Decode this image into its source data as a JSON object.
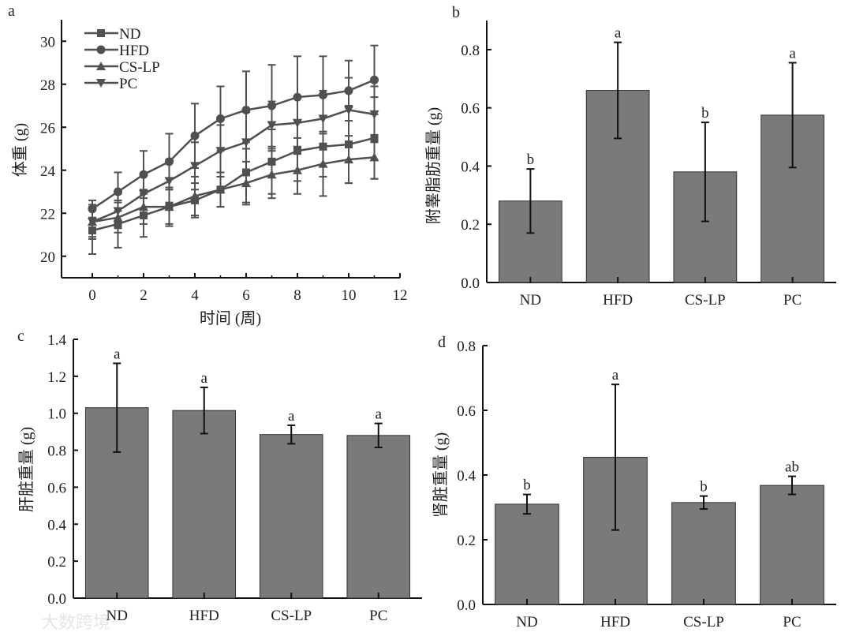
{
  "colors": {
    "line": "#505050",
    "bar": "#7a7a7a",
    "axis": "#111111"
  },
  "watermark": "大数跨境",
  "chart_data": [
    {
      "panel": "a",
      "type": "line",
      "xlabel": "时间 (周)",
      "ylabel": "体重 (g)",
      "xlim": [
        -1.2,
        12
      ],
      "ylim": [
        19,
        31
      ],
      "xticks": [
        0,
        2,
        4,
        6,
        8,
        10,
        12
      ],
      "yticks": [
        20,
        22,
        24,
        26,
        28,
        30
      ],
      "legend": "top-left",
      "x": [
        0,
        1,
        2,
        3,
        4,
        5,
        6,
        7,
        8,
        9,
        10,
        11
      ],
      "series": [
        {
          "name": "ND",
          "marker": "square",
          "values": [
            21.2,
            21.5,
            21.9,
            22.3,
            22.6,
            23.1,
            23.9,
            24.4,
            24.9,
            25.1,
            25.2,
            25.5
          ],
          "errors": [
            1.1,
            1.1,
            1.0,
            0.9,
            0.8,
            0.8,
            1.4,
            1.5,
            1.4,
            1.4,
            1.8,
            1.9
          ]
        },
        {
          "name": "HFD",
          "marker": "circle",
          "values": [
            22.2,
            23.0,
            23.8,
            24.4,
            25.6,
            26.4,
            26.8,
            27.0,
            27.4,
            27.5,
            27.7,
            28.2
          ],
          "errors": [
            0.4,
            0.9,
            1.1,
            1.3,
            1.5,
            1.5,
            1.8,
            1.9,
            1.9,
            1.8,
            1.4,
            1.6
          ]
        },
        {
          "name": "CS-LP",
          "marker": "triangle-up",
          "values": [
            21.6,
            21.8,
            22.3,
            22.3,
            22.8,
            23.1,
            23.4,
            23.8,
            24.0,
            24.3,
            24.5,
            24.6
          ],
          "errors": [
            0.7,
            0.7,
            0.8,
            0.8,
            0.9,
            0.8,
            1.0,
            1.1,
            1.1,
            1.5,
            1.1,
            1.0
          ]
        },
        {
          "name": "PC",
          "marker": "triangle-down",
          "values": [
            21.6,
            22.1,
            22.9,
            23.5,
            24.2,
            24.9,
            25.3,
            26.1,
            26.2,
            26.4,
            26.8,
            26.6
          ],
          "errors": [
            0.8,
            0.8,
            0.9,
            1.0,
            1.1,
            1.2,
            1.4,
            1.1,
            1.2,
            1.3,
            1.5,
            1.3
          ]
        }
      ]
    },
    {
      "panel": "b",
      "type": "bar",
      "ylabel": "附睾脂肪重量 (g)",
      "categories": [
        "ND",
        "HFD",
        "CS-LP",
        "PC"
      ],
      "values": [
        0.28,
        0.66,
        0.38,
        0.575
      ],
      "errors": [
        0.11,
        0.165,
        0.17,
        0.18
      ],
      "letters": [
        "b",
        "a",
        "b",
        "a"
      ],
      "ylim": [
        0,
        0.9
      ],
      "yticks": [
        "0.0",
        "0.2",
        "0.4",
        "0.6",
        "0.8"
      ]
    },
    {
      "panel": "c",
      "type": "bar",
      "ylabel": "肝脏重量 (g)",
      "categories": [
        "ND",
        "HFD",
        "CS-LP",
        "PC"
      ],
      "values": [
        1.03,
        1.015,
        0.885,
        0.88
      ],
      "errors": [
        0.24,
        0.125,
        0.05,
        0.065
      ],
      "letters": [
        "a",
        "a",
        "a",
        "a"
      ],
      "ylim": [
        0,
        1.4
      ],
      "yticks": [
        "0.0",
        "0.2",
        "0.4",
        "0.6",
        "0.8",
        "1.0",
        "1.2",
        "1.4"
      ]
    },
    {
      "panel": "d",
      "type": "bar",
      "ylabel": "肾脏重量 (g)",
      "categories": [
        "ND",
        "HFD",
        "CS-LP",
        "PC"
      ],
      "values": [
        0.31,
        0.455,
        0.315,
        0.368
      ],
      "errors": [
        0.03,
        0.225,
        0.02,
        0.028
      ],
      "letters": [
        "b",
        "a",
        "b",
        "ab"
      ],
      "ylim": [
        0,
        0.8
      ],
      "yticks": [
        "0.0",
        "0.2",
        "0.4",
        "0.6",
        "0.8"
      ]
    }
  ]
}
